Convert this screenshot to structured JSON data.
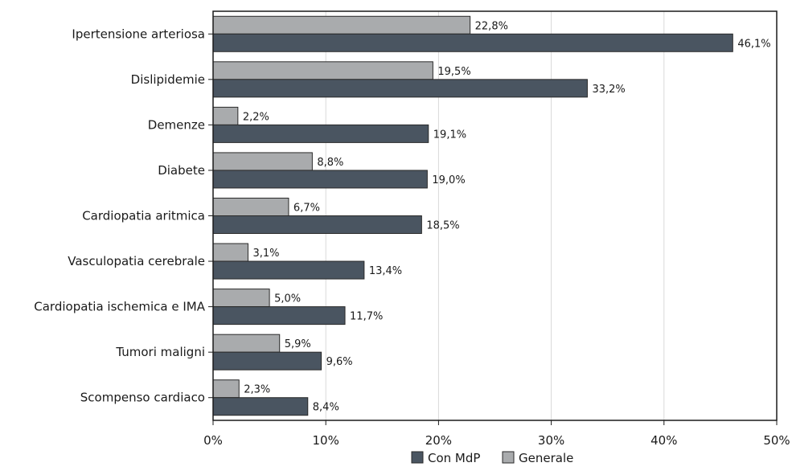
{
  "chart_data": {
    "type": "bar",
    "orientation": "horizontal",
    "categories": [
      "Ipertensione arteriosa",
      "Dislipidemie",
      "Demenze",
      "Diabete",
      "Cardiopatia aritmica",
      "Vasculopatia cerebrale",
      "Cardiopatia ischemica e IMA",
      "Tumori maligni",
      "Scompenso cardiaco"
    ],
    "series": [
      {
        "name": "Generale",
        "color": "#a9abad",
        "values": [
          22.8,
          19.5,
          2.2,
          8.8,
          6.7,
          3.1,
          5.0,
          5.9,
          2.3
        ],
        "labels": [
          "22,8%",
          "19,5%",
          "2,2%",
          "8,8%",
          "6,7%",
          "3,1%",
          "5,0%",
          "5,9%",
          "2,3%"
        ]
      },
      {
        "name": "Con MdP",
        "color": "#4a5561",
        "values": [
          46.1,
          33.2,
          19.1,
          19.0,
          18.5,
          13.4,
          11.7,
          9.6,
          8.4
        ],
        "labels": [
          "46,1%",
          "33,2%",
          "19,1%",
          "19,0%",
          "18,5%",
          "13,4%",
          "11,7%",
          "9,6%",
          "8,4%"
        ]
      }
    ],
    "xlim": [
      0,
      50
    ],
    "x_ticks": [
      0,
      10,
      20,
      30,
      40,
      50
    ],
    "x_tick_labels": [
      "0%",
      "10%",
      "20%",
      "30%",
      "40%",
      "50%"
    ],
    "xlabel": "",
    "ylabel": "",
    "title": "",
    "grid": "vertical",
    "legend": {
      "position": "bottom",
      "entries": [
        "Con MdP",
        "Generale"
      ]
    }
  }
}
